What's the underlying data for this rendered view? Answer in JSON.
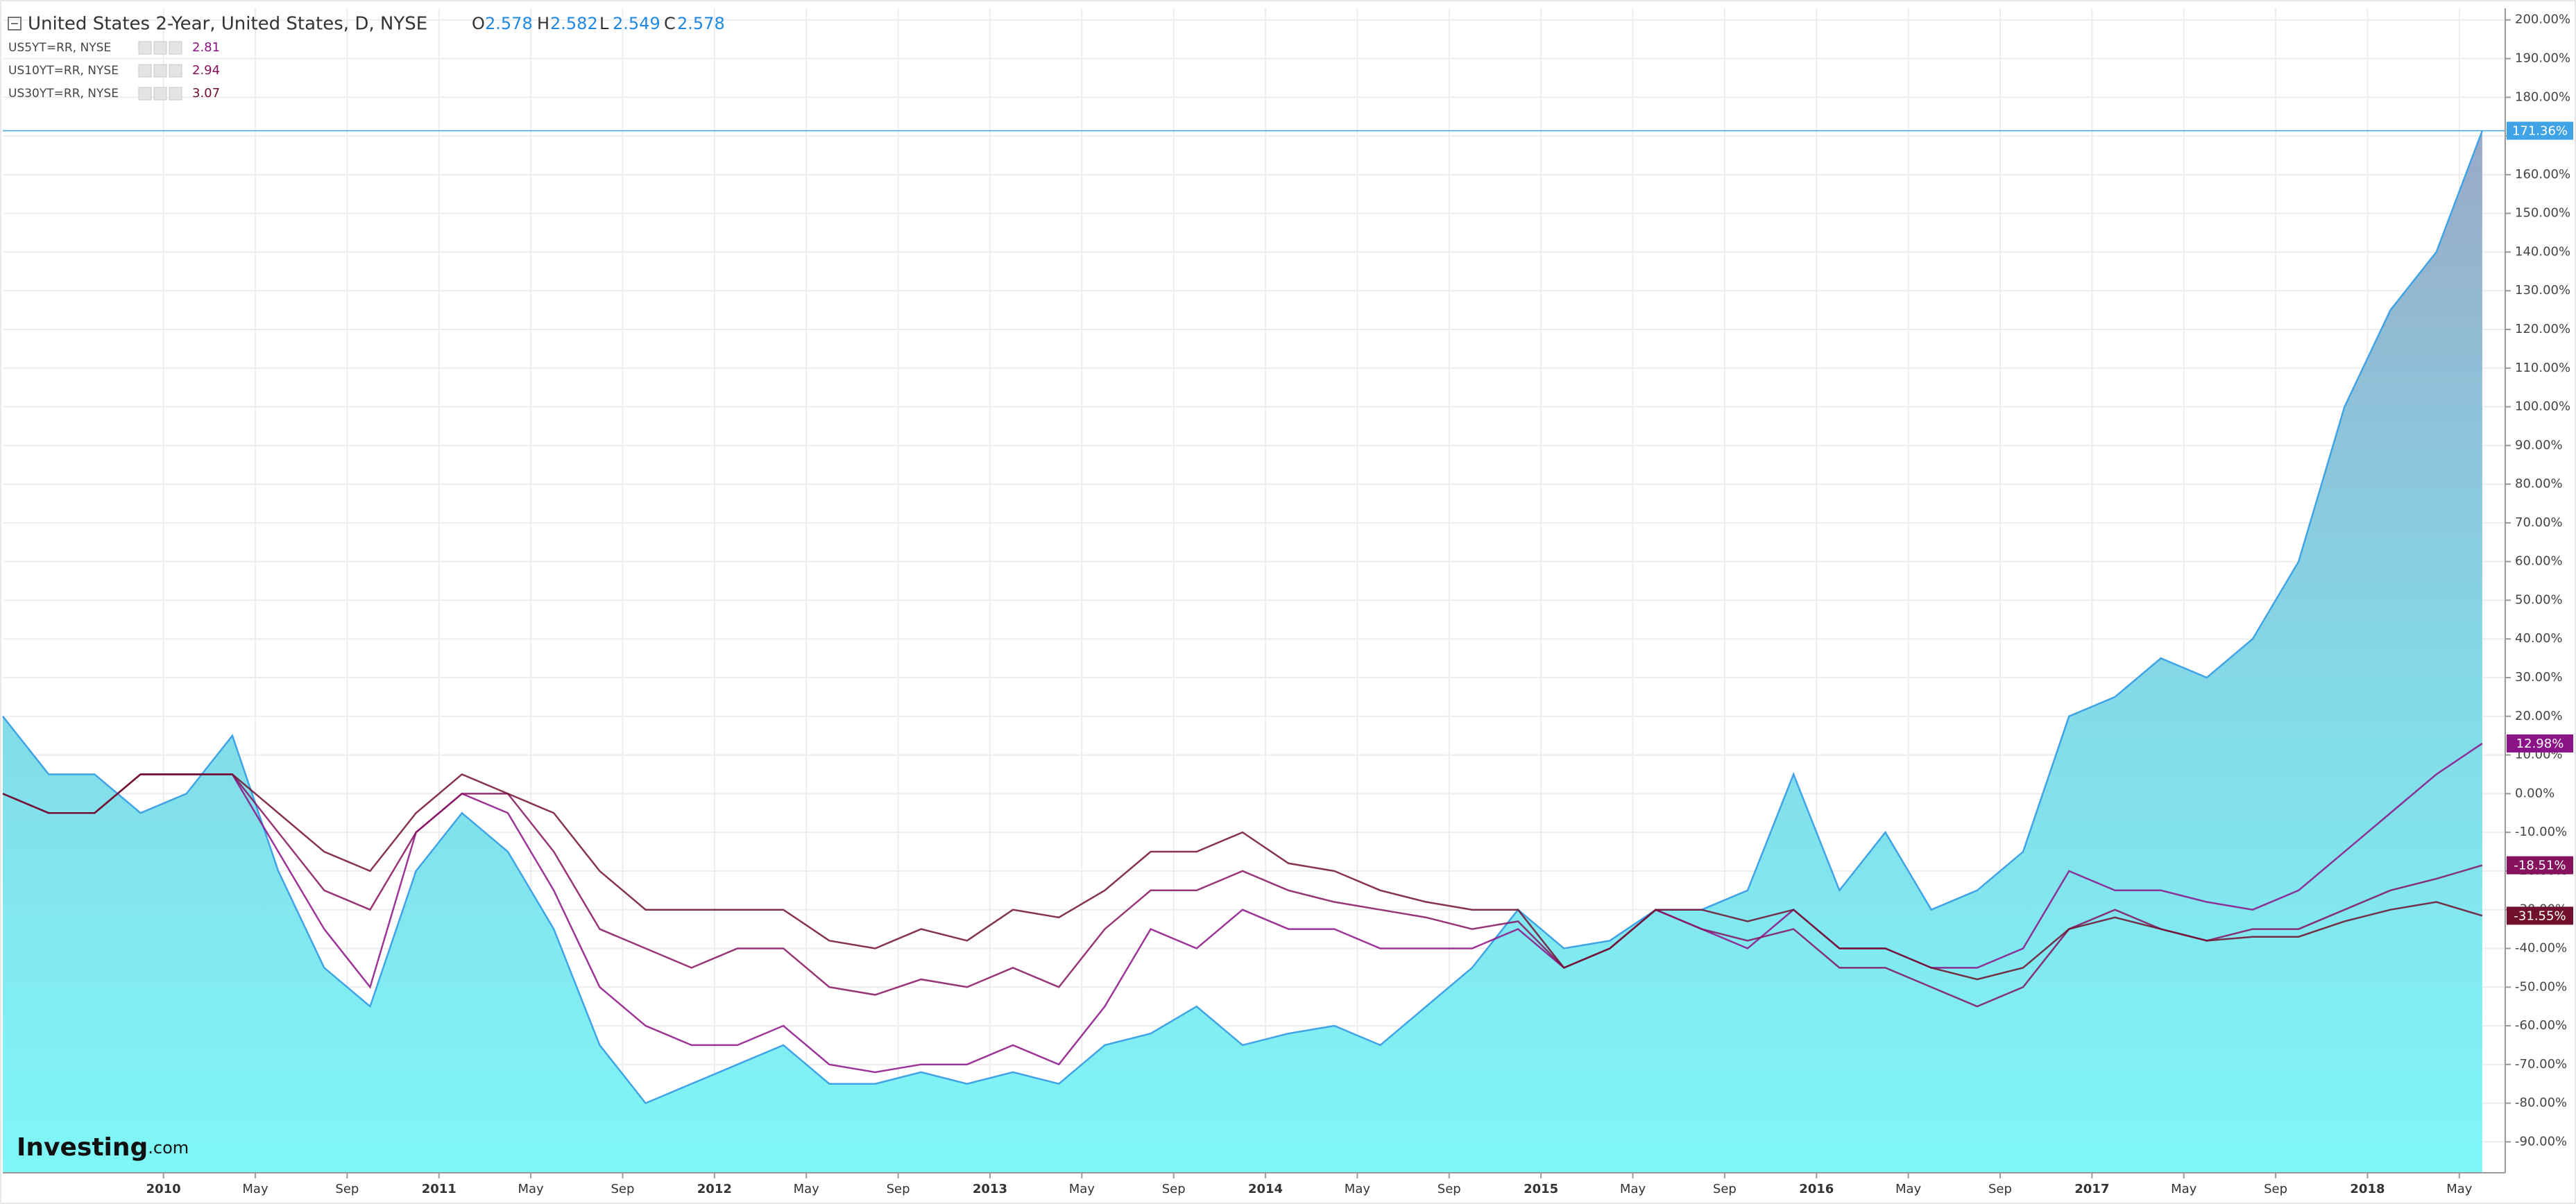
{
  "chart_data": {
    "type": "line",
    "grid": true,
    "watermark": [
      "Investing",
      ".com"
    ],
    "x": [
      "2009-06",
      "2009-08",
      "2009-10",
      "2009-12",
      "2010-02",
      "2010-04",
      "2010-06",
      "2010-08",
      "2010-10",
      "2010-12",
      "2011-02",
      "2011-04",
      "2011-06",
      "2011-08",
      "2011-10",
      "2011-12",
      "2012-02",
      "2012-04",
      "2012-06",
      "2012-08",
      "2012-10",
      "2012-12",
      "2013-02",
      "2013-04",
      "2013-06",
      "2013-08",
      "2013-10",
      "2013-12",
      "2014-02",
      "2014-04",
      "2014-06",
      "2014-08",
      "2014-10",
      "2014-12",
      "2015-02",
      "2015-04",
      "2015-06",
      "2015-08",
      "2015-10",
      "2015-12",
      "2016-02",
      "2016-04",
      "2016-06",
      "2016-08",
      "2016-10",
      "2016-12",
      "2017-02",
      "2017-04",
      "2017-06",
      "2017-08",
      "2017-10",
      "2017-12",
      "2018-02",
      "2018-04",
      "2018-06"
    ],
    "xlim": [
      "2009-06",
      "2018-07"
    ],
    "xticks": [
      {
        "value": "2010-01",
        "label": "2010"
      },
      {
        "value": "2010-05",
        "label": "May"
      },
      {
        "value": "2010-09",
        "label": "Sep"
      },
      {
        "value": "2011-01",
        "label": "2011"
      },
      {
        "value": "2011-05",
        "label": "May"
      },
      {
        "value": "2011-09",
        "label": "Sep"
      },
      {
        "value": "2012-01",
        "label": "2012"
      },
      {
        "value": "2012-05",
        "label": "May"
      },
      {
        "value": "2012-09",
        "label": "Sep"
      },
      {
        "value": "2013-01",
        "label": "2013"
      },
      {
        "value": "2013-05",
        "label": "May"
      },
      {
        "value": "2013-09",
        "label": "Sep"
      },
      {
        "value": "2014-01",
        "label": "2014"
      },
      {
        "value": "2014-05",
        "label": "May"
      },
      {
        "value": "2014-09",
        "label": "Sep"
      },
      {
        "value": "2015-01",
        "label": "2015"
      },
      {
        "value": "2015-05",
        "label": "May"
      },
      {
        "value": "2015-09",
        "label": "Sep"
      },
      {
        "value": "2016-01",
        "label": "2016"
      },
      {
        "value": "2016-05",
        "label": "May"
      },
      {
        "value": "2016-09",
        "label": "Sep"
      },
      {
        "value": "2017-01",
        "label": "2017"
      },
      {
        "value": "2017-05",
        "label": "May"
      },
      {
        "value": "2017-09",
        "label": "Sep"
      },
      {
        "value": "2018-01",
        "label": "2018"
      },
      {
        "value": "2018-05",
        "label": "May"
      }
    ],
    "ylim": [
      -98,
      203
    ],
    "yticks": [
      {
        "value": -90,
        "label": "-90.00%"
      },
      {
        "value": -80,
        "label": "-80.00%"
      },
      {
        "value": -70,
        "label": "-70.00%"
      },
      {
        "value": -60,
        "label": "-60.00%"
      },
      {
        "value": -50,
        "label": "-50.00%"
      },
      {
        "value": -40,
        "label": "-40.00%"
      },
      {
        "value": -30,
        "label": "-30.00%"
      },
      {
        "value": -20,
        "label": "-20.00%"
      },
      {
        "value": -10,
        "label": "-10.00%"
      },
      {
        "value": 0,
        "label": "0.00%"
      },
      {
        "value": 10,
        "label": "10.00%"
      },
      {
        "value": 20,
        "label": "20.00%"
      },
      {
        "value": 30,
        "label": "30.00%"
      },
      {
        "value": 40,
        "label": "40.00%"
      },
      {
        "value": 50,
        "label": "50.00%"
      },
      {
        "value": 60,
        "label": "60.00%"
      },
      {
        "value": 70,
        "label": "70.00%"
      },
      {
        "value": 80,
        "label": "80.00%"
      },
      {
        "value": 90,
        "label": "90.00%"
      },
      {
        "value": 100,
        "label": "100.00%"
      },
      {
        "value": 110,
        "label": "110.00%"
      },
      {
        "value": 120,
        "label": "120.00%"
      },
      {
        "value": 130,
        "label": "130.00%"
      },
      {
        "value": 140,
        "label": "140.00%"
      },
      {
        "value": 150,
        "label": "150.00%"
      },
      {
        "value": 160,
        "label": "160.00%"
      },
      {
        "value": 170,
        "label": "170.00%"
      },
      {
        "value": 180,
        "label": "180.00%"
      },
      {
        "value": 190,
        "label": "190.00%"
      },
      {
        "value": 200,
        "label": "200.00%"
      }
    ],
    "series": [
      {
        "name": "United States 2-Year, United States, D, NYSE",
        "color": "#3fa3e6",
        "area": true,
        "ohlc": [
          {
            "label": "O",
            "value": 2.578
          },
          {
            "label": "H",
            "value": 2.582
          },
          {
            "label": "L",
            "value": 2.549
          },
          {
            "label": "C",
            "value": 2.578
          }
        ],
        "values": [
          20,
          5,
          5,
          -5,
          0,
          15,
          -20,
          -45,
          -55,
          -20,
          -5,
          -15,
          -35,
          -65,
          -80,
          -75,
          -70,
          -65,
          -75,
          -75,
          -72,
          -75,
          -72,
          -75,
          -65,
          -62,
          -55,
          -65,
          -62,
          -60,
          -65,
          -55,
          -45,
          -30,
          -40,
          -38,
          -30,
          -30,
          -25,
          5,
          -25,
          -10,
          -30,
          -25,
          -15,
          20,
          25,
          35,
          30,
          40,
          60,
          100,
          125,
          140,
          171.36
        ],
        "value_labels": [
          null,
          null,
          null,
          null,
          null,
          null,
          null,
          null,
          null,
          null,
          null,
          null,
          null,
          null,
          null,
          null,
          null,
          null,
          null,
          null,
          null,
          null,
          null,
          null,
          null,
          null,
          null,
          null,
          null,
          null,
          null,
          null,
          null,
          null,
          null,
          null,
          null,
          null,
          null,
          null,
          null,
          null,
          null,
          null,
          null,
          null,
          null,
          null,
          null,
          null,
          null,
          null,
          null,
          null,
          "171.36%"
        ]
      },
      {
        "name": "US5YT=RR, NYSE",
        "color": "#8c1287",
        "last": 2.81,
        "values": [
          0,
          -5,
          -5,
          5,
          5,
          5,
          -15,
          -35,
          -50,
          -10,
          0,
          -5,
          -25,
          -50,
          -60,
          -65,
          -65,
          -60,
          -70,
          -72,
          -70,
          -70,
          -65,
          -70,
          -55,
          -35,
          -40,
          -30,
          -35,
          -35,
          -40,
          -40,
          -40,
          -35,
          -45,
          -40,
          -30,
          -35,
          -40,
          -30,
          -40,
          -40,
          -45,
          -45,
          -40,
          -20,
          -25,
          -25,
          -28,
          -30,
          -25,
          -15,
          -5,
          5,
          12.98
        ],
        "value_labels": [
          null,
          null,
          null,
          null,
          null,
          null,
          null,
          null,
          null,
          null,
          null,
          null,
          null,
          null,
          null,
          null,
          null,
          null,
          null,
          null,
          null,
          null,
          null,
          null,
          null,
          null,
          null,
          null,
          null,
          null,
          null,
          null,
          null,
          null,
          null,
          null,
          null,
          null,
          null,
          null,
          null,
          null,
          null,
          null,
          null,
          null,
          null,
          null,
          null,
          null,
          null,
          null,
          null,
          null,
          "12.98%"
        ]
      },
      {
        "name": "US10YT=RR, NYSE",
        "color": "#86125e",
        "last": 2.94,
        "values": [
          0,
          -5,
          -5,
          5,
          5,
          5,
          -10,
          -25,
          -30,
          -10,
          0,
          0,
          -15,
          -35,
          -40,
          -45,
          -40,
          -40,
          -50,
          -52,
          -48,
          -50,
          -45,
          -50,
          -35,
          -25,
          -25,
          -20,
          -25,
          -28,
          -30,
          -32,
          -35,
          -33,
          -45,
          -40,
          -30,
          -35,
          -38,
          -35,
          -45,
          -45,
          -50,
          -55,
          -50,
          -35,
          -30,
          -35,
          -38,
          -35,
          -35,
          -30,
          -25,
          -22,
          -18.51
        ],
        "value_labels": [
          null,
          null,
          null,
          null,
          null,
          null,
          null,
          null,
          null,
          null,
          null,
          null,
          null,
          null,
          null,
          null,
          null,
          null,
          null,
          null,
          null,
          null,
          null,
          null,
          null,
          null,
          null,
          null,
          null,
          null,
          null,
          null,
          null,
          null,
          null,
          null,
          null,
          null,
          null,
          null,
          null,
          null,
          null,
          null,
          null,
          null,
          null,
          null,
          null,
          null,
          null,
          null,
          null,
          null,
          "-18.51%"
        ]
      },
      {
        "name": "US30YT=RR, NYSE",
        "color": "#70102c",
        "last": 3.07,
        "values": [
          0,
          -5,
          -5,
          5,
          5,
          5,
          -5,
          -15,
          -20,
          -5,
          5,
          0,
          -5,
          -20,
          -30,
          -30,
          -30,
          -30,
          -38,
          -40,
          -35,
          -38,
          -30,
          -32,
          -25,
          -15,
          -15,
          -10,
          -18,
          -20,
          -25,
          -28,
          -30,
          -30,
          -45,
          -40,
          -30,
          -30,
          -33,
          -30,
          -40,
          -40,
          -45,
          -48,
          -45,
          -35,
          -32,
          -35,
          -38,
          -37,
          -37,
          -33,
          -30,
          -28,
          -31.55
        ],
        "value_labels": [
          null,
          null,
          null,
          null,
          null,
          null,
          null,
          null,
          null,
          null,
          null,
          null,
          null,
          null,
          null,
          null,
          null,
          null,
          null,
          null,
          null,
          null,
          null,
          null,
          null,
          null,
          null,
          null,
          null,
          null,
          null,
          null,
          null,
          null,
          null,
          null,
          null,
          null,
          null,
          null,
          null,
          null,
          null,
          null,
          null,
          null,
          null,
          null,
          null,
          null,
          null,
          null,
          null,
          null,
          "-31.55%"
        ]
      }
    ]
  }
}
